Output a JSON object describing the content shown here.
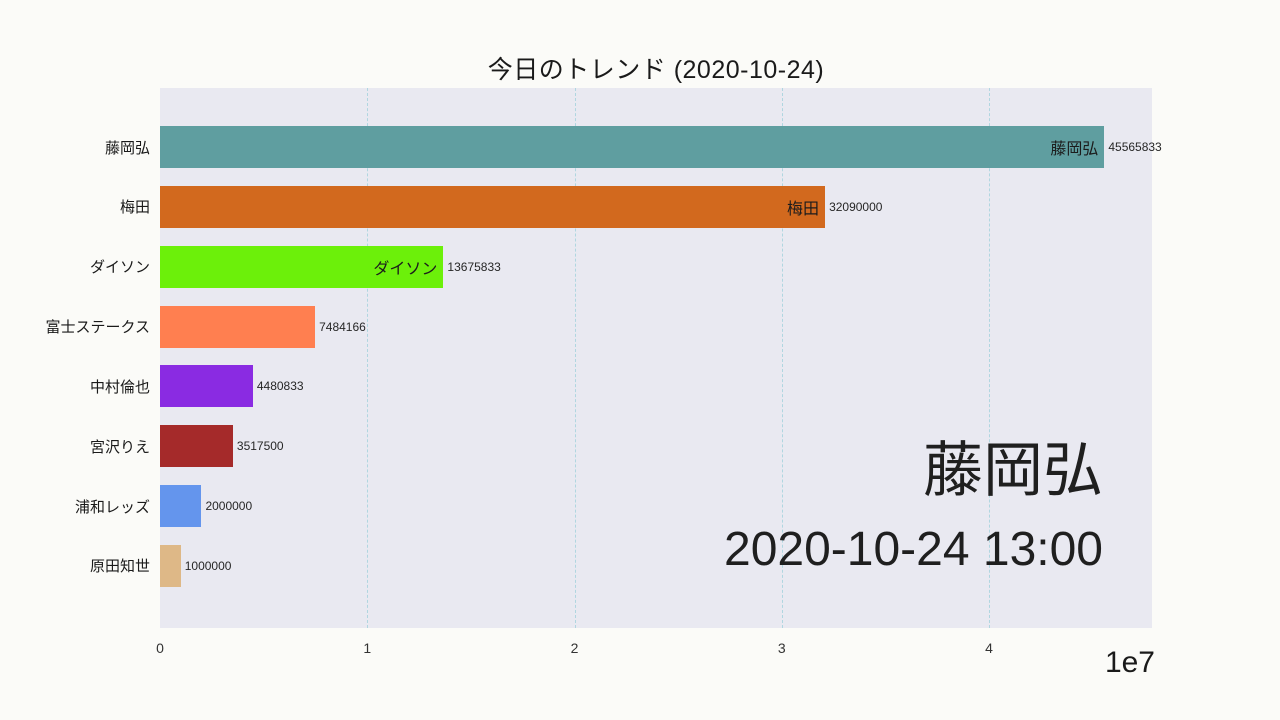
{
  "chart_data": {
    "type": "bar",
    "orientation": "horizontal",
    "title": "今日のトレンド (2020-10-24)",
    "xlabel": "",
    "ylabel": "",
    "xlim": [
      0,
      47900000
    ],
    "grid": "vertical-dashed",
    "legend": "none",
    "plot_background": "#e9e9f1",
    "page_background": "#fbfbf8",
    "x_axis": {
      "tick_labels": [
        "0",
        "1",
        "2",
        "3",
        "4"
      ],
      "tick_values": [
        0,
        10000000,
        20000000,
        30000000,
        40000000
      ],
      "scale_label": "1e7"
    },
    "categories": [
      "藤岡弘",
      "梅田",
      "ダイソン",
      "富士ステークス",
      "中村倫也",
      "宮沢りえ",
      "浦和レッズ",
      "原田知世"
    ],
    "values": [
      45565833,
      32090000,
      13675833,
      7484166,
      4480833,
      3517500,
      2000000,
      1000000
    ],
    "bars": [
      {
        "name": "藤岡弘",
        "value": 45565833,
        "value_label": "45565833",
        "color": "#5F9EA0",
        "in_bar_label": "藤岡弘"
      },
      {
        "name": "梅田",
        "value": 32090000,
        "value_label": "32090000",
        "color": "#D2691E",
        "in_bar_label": "梅田"
      },
      {
        "name": "ダイソン",
        "value": 13675833,
        "value_label": "13675833",
        "color": "#6CF00A",
        "in_bar_label": "ダイソン"
      },
      {
        "name": "富士ステークス",
        "value": 7484166,
        "value_label": "7484166",
        "color": "#FF7F50",
        "in_bar_label": ""
      },
      {
        "name": "中村倫也",
        "value": 4480833,
        "value_label": "4480833",
        "color": "#8A2BE2",
        "in_bar_label": ""
      },
      {
        "name": "宮沢りえ",
        "value": 3517500,
        "value_label": "3517500",
        "color": "#A52A2A",
        "in_bar_label": ""
      },
      {
        "name": "浦和レッズ",
        "value": 2000000,
        "value_label": "2000000",
        "color": "#6495ED",
        "in_bar_label": ""
      },
      {
        "name": "原田知世",
        "value": 1000000,
        "value_label": "1000000",
        "color": "#DEB887",
        "in_bar_label": ""
      }
    ],
    "overlay": {
      "current_leader": "藤岡弘",
      "timestamp": "2020-10-24 13:00"
    }
  }
}
